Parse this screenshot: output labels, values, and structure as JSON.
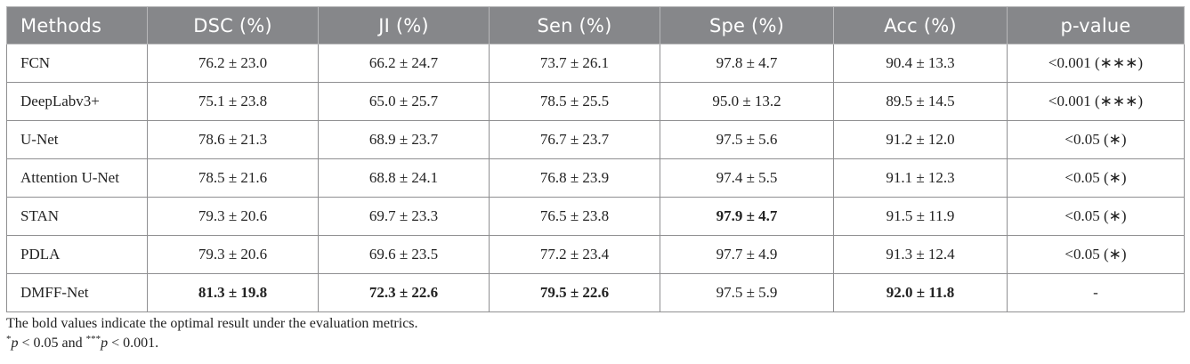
{
  "table": {
    "headers": [
      "Methods",
      "DSC (%)",
      "JI (%)",
      "Sen (%)",
      "Spe (%)",
      "Acc (%)",
      "p-value"
    ],
    "rows": [
      {
        "method": "FCN",
        "dsc": "76.2 ± 23.0",
        "ji": "66.2 ± 24.7",
        "sen": "73.7 ± 26.1",
        "spe": "97.8 ± 4.7",
        "acc": "90.4 ± 13.3",
        "p": "<0.001 (∗∗∗)"
      },
      {
        "method": "DeepLabv3+",
        "dsc": "75.1 ± 23.8",
        "ji": "65.0 ± 25.7",
        "sen": "78.5 ± 25.5",
        "spe": "95.0 ± 13.2",
        "acc": "89.5 ± 14.5",
        "p": "<0.001 (∗∗∗)"
      },
      {
        "method": "U-Net",
        "dsc": "78.6 ± 21.3",
        "ji": "68.9 ± 23.7",
        "sen": "76.7 ± 23.7",
        "spe": "97.5 ± 5.6",
        "acc": "91.2 ± 12.0",
        "p": "<0.05 (∗)"
      },
      {
        "method": "Attention U-Net",
        "dsc": "78.5 ± 21.6",
        "ji": "68.8 ± 24.1",
        "sen": "76.8 ± 23.9",
        "spe": "97.4 ± 5.5",
        "acc": "91.1 ± 12.3",
        "p": "<0.05 (∗)"
      },
      {
        "method": "STAN",
        "dsc": "79.3 ± 20.6",
        "ji": "69.7 ± 23.3",
        "sen": "76.5 ± 23.8",
        "spe": "97.9 ± 4.7",
        "acc": "91.5 ± 11.9",
        "p": "<0.05 (∗)"
      },
      {
        "method": "PDLA",
        "dsc": "79.3 ± 20.6",
        "ji": "69.6 ± 23.5",
        "sen": "77.2 ± 23.4",
        "spe": "97.7 ± 4.9",
        "acc": "91.3 ± 12.4",
        "p": "<0.05 (∗)"
      },
      {
        "method": "DMFF-Net",
        "dsc": "81.3 ± 19.8",
        "ji": "72.3 ± 22.6",
        "sen": "79.5 ± 22.6",
        "spe": "97.5 ± 5.9",
        "acc": "92.0 ± 11.8",
        "p": "-"
      }
    ]
  },
  "notes": {
    "bold_note": "The bold values indicate the optimal result under the evaluation metrics.",
    "sig_star1": "*",
    "sig_p1": "p",
    "sig_text1": " < 0.05 and ",
    "sig_star3": "***",
    "sig_p2": "p",
    "sig_text2": " < 0.001."
  },
  "colors": {
    "header_bg": "#86878a",
    "header_text": "#ffffff",
    "border": "#8f8f91"
  }
}
